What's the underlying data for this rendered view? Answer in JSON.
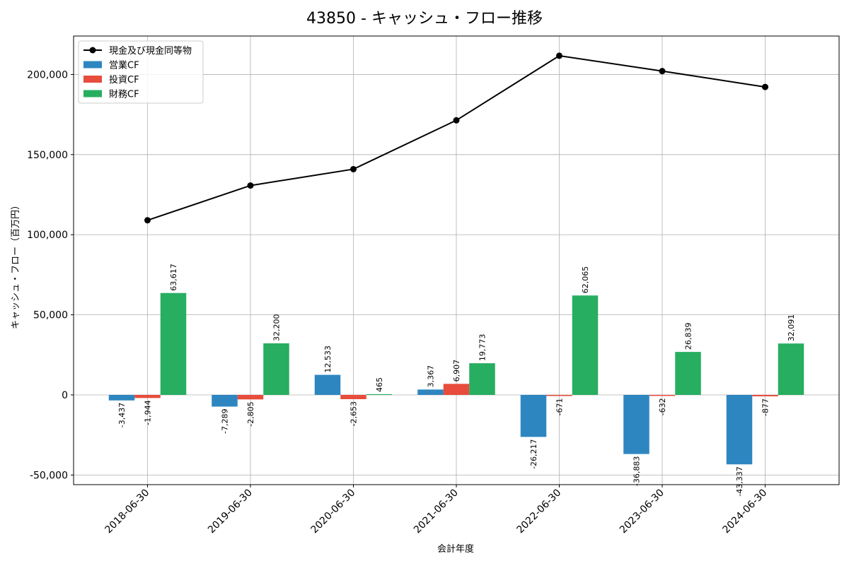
{
  "chart_data": {
    "type": "bar",
    "title": "43850 - キャッシュ・フロー推移",
    "xlabel": "会計年度",
    "ylabel": "キャッシュ・フロー（百万円）",
    "categories": [
      "2018-06-30",
      "2019-06-30",
      "2020-06-30",
      "2021-06-30",
      "2022-06-30",
      "2023-06-30",
      "2024-06-30"
    ],
    "ylim": [
      -56000,
      224000
    ],
    "yticks": [
      -50000,
      0,
      50000,
      100000,
      150000,
      200000
    ],
    "ytick_labels": [
      "-50,000",
      "0",
      "50,000",
      "100,000",
      "150,000",
      "200,000"
    ],
    "grid": true,
    "legend_position": "top-left",
    "series": [
      {
        "name": "営業CF",
        "type": "bar",
        "color": "#2e86c1",
        "values": [
          -3437,
          -7289,
          12533,
          3367,
          -26217,
          -36883,
          -43337
        ],
        "labels": [
          "-3,437",
          "-7,289",
          "12,533",
          "3,367",
          "-26,217",
          "-36,883",
          "-43,337"
        ]
      },
      {
        "name": "投資CF",
        "type": "bar",
        "color": "#e74c3c",
        "values": [
          -1944,
          -2805,
          -2653,
          6907,
          -671,
          -632,
          -877
        ],
        "labels": [
          "-1,944",
          "-2,805",
          "-2,653",
          "6,907",
          "-671",
          "-632",
          "-877"
        ]
      },
      {
        "name": "財務CF",
        "type": "bar",
        "color": "#27ae60",
        "values": [
          63617,
          32200,
          465,
          19773,
          62065,
          26839,
          32091
        ],
        "labels": [
          "63,617",
          "32,200",
          "465",
          "19,773",
          "62,065",
          "26,839",
          "32,091"
        ]
      },
      {
        "name": "現金及び現金同等物",
        "type": "line",
        "color": "#000000",
        "values": [
          109000,
          130700,
          140900,
          171400,
          211700,
          202100,
          192200
        ]
      }
    ]
  }
}
